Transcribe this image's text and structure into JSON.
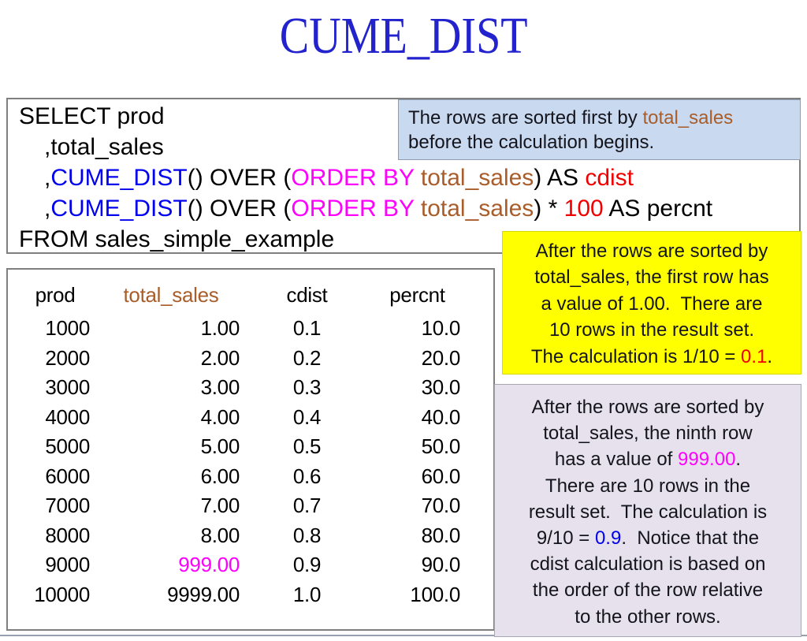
{
  "title": "CUME_DIST",
  "colors": {
    "black": "#000000",
    "text": "#14141c",
    "blue": "#0000ee",
    "magenta": "#ff00ff",
    "brown": "#a85d2a",
    "red": "#f00000",
    "title_blue": "#2323ce",
    "callout_blue_bg": "#c9d9f0",
    "yellow_bg": "#ffff00",
    "lavender_bg": "#e6e1ec"
  },
  "sql": {
    "lines": [
      {
        "indent": false,
        "segments": [
          {
            "t": "SELECT prod",
            "c": "black"
          }
        ]
      },
      {
        "indent": true,
        "segments": [
          {
            "t": ",total_sales",
            "c": "black"
          }
        ]
      },
      {
        "indent": true,
        "segments": [
          {
            "t": ",",
            "c": "black"
          },
          {
            "t": "CUME_DIST",
            "c": "blue"
          },
          {
            "t": "() OVER (",
            "c": "black"
          },
          {
            "t": "ORDER BY",
            "c": "magenta"
          },
          {
            "t": " total_sales",
            "c": "brown"
          },
          {
            "t": ") AS ",
            "c": "black"
          },
          {
            "t": "cdist",
            "c": "red"
          }
        ]
      },
      {
        "indent": true,
        "segments": [
          {
            "t": ",",
            "c": "black"
          },
          {
            "t": "CUME_DIST",
            "c": "blue"
          },
          {
            "t": "() OVER (",
            "c": "black"
          },
          {
            "t": "ORDER BY",
            "c": "magenta"
          },
          {
            "t": " total_sales",
            "c": "brown"
          },
          {
            "t": ") * ",
            "c": "black"
          },
          {
            "t": "100",
            "c": "red"
          },
          {
            "t": " AS percnt",
            "c": "black"
          }
        ]
      },
      {
        "indent": false,
        "segments": [
          {
            "t": "FROM sales_simple_example",
            "c": "black"
          }
        ]
      }
    ]
  },
  "callout_sort": {
    "segments": [
      {
        "t": "The rows are sorted first by ",
        "c": "text"
      },
      {
        "t": "total_sales",
        "c": "brown"
      },
      {
        "t": " before the calculation begins.",
        "c": "text"
      }
    ]
  },
  "callout_first": {
    "lines": [
      [
        {
          "t": "After the rows are sorted by",
          "c": "text"
        }
      ],
      [
        {
          "t": "total_sales, the first row has",
          "c": "text"
        }
      ],
      [
        {
          "t": "a value of 1.00.  There are",
          "c": "text"
        }
      ],
      [
        {
          "t": "10 rows in the result set.",
          "c": "text"
        }
      ],
      [
        {
          "t": "The calculation is 1/10 = ",
          "c": "text"
        },
        {
          "t": "0.1",
          "c": "red"
        },
        {
          "t": ".",
          "c": "text"
        }
      ]
    ]
  },
  "callout_ninth": {
    "lines": [
      [
        {
          "t": "After the rows are sorted by",
          "c": "text"
        }
      ],
      [
        {
          "t": "total_sales, the ninth row",
          "c": "text"
        }
      ],
      [
        {
          "t": "has a value of ",
          "c": "text"
        },
        {
          "t": "999.00",
          "c": "magenta"
        },
        {
          "t": ".",
          "c": "text"
        }
      ],
      [
        {
          "t": "There are 10 rows in the",
          "c": "text"
        }
      ],
      [
        {
          "t": "result set.  The calculation is",
          "c": "text"
        }
      ],
      [
        {
          "t": "9/10 = ",
          "c": "text"
        },
        {
          "t": "0.9",
          "c": "blue"
        },
        {
          "t": ".  Notice that the",
          "c": "text"
        }
      ],
      [
        {
          "t": "cdist calculation is based on",
          "c": "text"
        }
      ],
      [
        {
          "t": "the order of the row relative",
          "c": "text"
        }
      ],
      [
        {
          "t": "to the other rows.",
          "c": "text"
        }
      ]
    ]
  },
  "table": {
    "headers": [
      {
        "t": "prod",
        "c": "black"
      },
      {
        "t": "total_sales",
        "c": "brown"
      },
      {
        "t": "cdist",
        "c": "black"
      },
      {
        "t": "percnt",
        "c": "black"
      }
    ],
    "rows": [
      [
        {
          "t": "1000"
        },
        {
          "t": "1.00"
        },
        {
          "t": "0.1"
        },
        {
          "t": "10.0"
        }
      ],
      [
        {
          "t": "2000"
        },
        {
          "t": "2.00"
        },
        {
          "t": "0.2"
        },
        {
          "t": "20.0"
        }
      ],
      [
        {
          "t": "3000"
        },
        {
          "t": "3.00"
        },
        {
          "t": "0.3"
        },
        {
          "t": "30.0"
        }
      ],
      [
        {
          "t": "4000"
        },
        {
          "t": "4.00"
        },
        {
          "t": "0.4"
        },
        {
          "t": "40.0"
        }
      ],
      [
        {
          "t": "5000"
        },
        {
          "t": "5.00"
        },
        {
          "t": "0.5"
        },
        {
          "t": "50.0"
        }
      ],
      [
        {
          "t": "6000"
        },
        {
          "t": "6.00"
        },
        {
          "t": "0.6"
        },
        {
          "t": "60.0"
        }
      ],
      [
        {
          "t": "7000"
        },
        {
          "t": "7.00"
        },
        {
          "t": "0.7"
        },
        {
          "t": "70.0"
        }
      ],
      [
        {
          "t": "8000"
        },
        {
          "t": "8.00"
        },
        {
          "t": "0.8"
        },
        {
          "t": "80.0"
        }
      ],
      [
        {
          "t": "9000"
        },
        {
          "t": "999.00",
          "c": "magenta"
        },
        {
          "t": "0.9"
        },
        {
          "t": "90.0"
        }
      ],
      [
        {
          "t": "10000"
        },
        {
          "t": "9999.00"
        },
        {
          "t": "1.0"
        },
        {
          "t": "100.0"
        }
      ]
    ]
  }
}
